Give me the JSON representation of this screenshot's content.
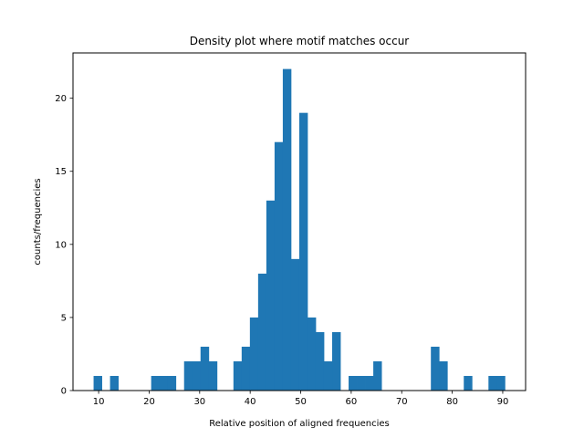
{
  "chart_data": {
    "type": "bar",
    "title": "Density plot where motif matches occur",
    "xlabel": "Relative position of aligned frequencies",
    "ylabel": "counts/frequencies",
    "xlim": [
      4.925,
      94.525
    ],
    "ylim": [
      0,
      23.1
    ],
    "xticks": [
      10,
      20,
      30,
      40,
      50,
      60,
      70,
      80,
      90
    ],
    "yticks": [
      0,
      5,
      10,
      15,
      20
    ],
    "grid": false,
    "color": "#1f77b4",
    "bins": {
      "start": 9,
      "width": 1.6286,
      "counts": [
        1,
        0,
        1,
        0,
        0,
        0,
        0,
        1,
        1,
        1,
        0,
        2,
        2,
        3,
        2,
        0,
        0,
        2,
        3,
        5,
        8,
        13,
        17,
        22,
        9,
        19,
        5,
        4,
        2,
        4,
        0,
        1,
        1,
        1,
        2,
        0,
        0,
        0,
        0,
        0,
        0,
        3,
        2,
        0,
        0,
        1,
        0,
        0,
        1,
        1
      ]
    }
  }
}
